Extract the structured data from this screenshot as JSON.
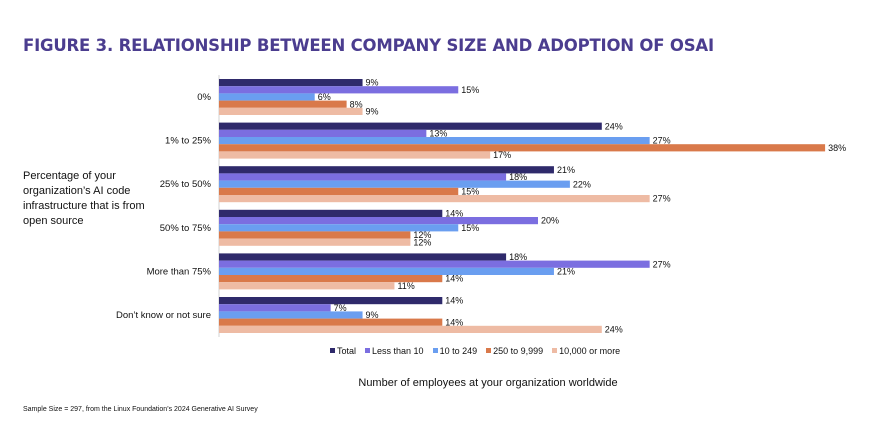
{
  "title": "FIGURE 3. RELATIONSHIP BETWEEN COMPANY SIZE AND ADOPTION OF OSAI",
  "footnote": "Sample Size = 297, from the Linux Foundation’s 2024 Generative AI Survey",
  "colors": {
    "title": "#4b3d8f",
    "series": [
      "#2f2a6b",
      "#7b6ee0",
      "#6a9ef0",
      "#d9794a",
      "#eebba4"
    ]
  },
  "chart_data": {
    "type": "bar",
    "orientation": "horizontal",
    "title": "FIGURE 3. RELATIONSHIP BETWEEN COMPANY SIZE AND ADOPTION OF OSAI",
    "ylabel": "Percentage of your organization’s AI code infrastructure that is from open source",
    "xlabel": "Number of employees at your organization worldwide",
    "categories": [
      "0%",
      "1% to 25%",
      "25% to 50%",
      "50% to 75%",
      "More than 75%",
      "Don’t know or not sure"
    ],
    "series": [
      {
        "name": "Total",
        "values": [
          9,
          24,
          21,
          14,
          18,
          14
        ]
      },
      {
        "name": "Less than 10",
        "values": [
          15,
          13,
          18,
          20,
          27,
          7
        ]
      },
      {
        "name": "10 to 249",
        "values": [
          6,
          27,
          22,
          15,
          21,
          9
        ]
      },
      {
        "name": "250 to 9,999",
        "values": [
          8,
          38,
          15,
          12,
          14,
          14
        ]
      },
      {
        "name": "10,000 or more",
        "values": [
          9,
          17,
          27,
          12,
          11,
          24
        ]
      }
    ],
    "value_suffix": "%",
    "xlim": [
      0,
      38
    ],
    "grid": false,
    "legend_position": "bottom"
  }
}
